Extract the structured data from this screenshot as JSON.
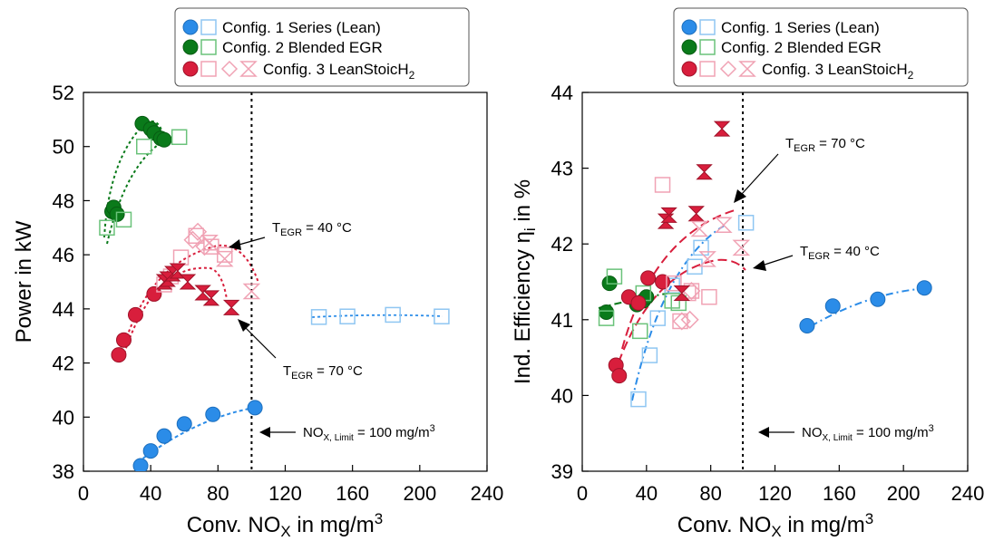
{
  "colors": {
    "series1": "#2b8ce8",
    "series1_light": "#8fc6f2",
    "series2": "#0a7a1a",
    "series2_light": "#6ac27a",
    "series3": "#d81e3c",
    "series3_light": "#f0a2b4"
  },
  "legend": {
    "entries": [
      {
        "prefix": "Config. 1 Series (Lean)",
        "sub": ""
      },
      {
        "prefix": "Config. 2 Blended EGR",
        "sub": ""
      },
      {
        "prefix": "Config. 3 LeanStoicH",
        "sub": "2"
      }
    ]
  },
  "chart_data": [
    {
      "type": "scatter",
      "xlabel": {
        "base": "Conv. NO",
        "sub": "X",
        "rest": " in mg/m",
        "sup": "3"
      },
      "ylabel": "Power in kW",
      "xlim": [
        0,
        240
      ],
      "ylim": [
        38,
        52
      ],
      "xticks": [
        "0",
        "40",
        "80",
        "120",
        "160",
        "200",
        "240"
      ],
      "yticks": [
        "38",
        "40",
        "42",
        "44",
        "46",
        "48",
        "50",
        "52"
      ],
      "vline": 100,
      "annotations": [
        {
          "base": "T",
          "sub": "EGR",
          "rest": " = 40 °C"
        },
        {
          "base": "T",
          "sub": "EGR",
          "rest": " = 70 °C"
        },
        {
          "base": "NO",
          "sub": "X, Limit",
          "rest": " = 100 mg/m",
          "sup": "3"
        }
      ],
      "series": [
        {
          "name": "Config. 1 Series (Lean)",
          "marker": "circle",
          "color": "series1",
          "points": [
            [
              34,
              38.2
            ],
            [
              40,
              38.75
            ],
            [
              48,
              39.3
            ],
            [
              60,
              39.75
            ],
            [
              77,
              40.1
            ],
            [
              102,
              40.35
            ]
          ]
        },
        {
          "name": "Config. 1 Series (Lean)",
          "marker": "square",
          "color": "series1_light",
          "points": [
            [
              140,
              43.7
            ],
            [
              157,
              43.72
            ],
            [
              184,
              43.78
            ],
            [
              213,
              43.72
            ]
          ]
        },
        {
          "name": "Config. 2 Blended EGR",
          "marker": "circle",
          "color": "series2",
          "points": [
            [
              17,
              47.6
            ],
            [
              18,
              47.75
            ],
            [
              20,
              47.5
            ],
            [
              35,
              50.85
            ],
            [
              40,
              50.65
            ],
            [
              42,
              50.5
            ],
            [
              46,
              50.3
            ],
            [
              48,
              50.25
            ]
          ]
        },
        {
          "name": "Config. 2 Blended EGR",
          "marker": "square",
          "color": "series2_light",
          "points": [
            [
              14,
              47.0
            ],
            [
              24,
              47.3
            ],
            [
              36,
              50.0
            ],
            [
              57,
              50.35
            ]
          ]
        },
        {
          "name": "Config. 3 LeanStoicH2",
          "marker": "circle",
          "color": "series3",
          "points": [
            [
              21,
              42.3
            ],
            [
              24,
              42.85
            ],
            [
              31,
              43.78
            ],
            [
              42,
              44.55
            ]
          ]
        },
        {
          "name": "Config. 3 LeanStoicH2",
          "marker": "square",
          "color": "series3_light",
          "points": [
            [
              48,
              44.9
            ],
            [
              52,
              45.2
            ],
            [
              58,
              45.9
            ],
            [
              67,
              46.7
            ],
            [
              76,
              46.3
            ],
            [
              84,
              46.0
            ]
          ]
        },
        {
          "name": "Config. 3 LeanStoicH2",
          "marker": "diamond",
          "color": "series3_light",
          "points": [
            [
              65,
              46.55
            ],
            [
              68,
              46.85
            ],
            [
              72,
              46.3
            ]
          ]
        },
        {
          "name": "Config. 3 LeanStoicH2",
          "marker": "hourglass",
          "color": "series3",
          "points": [
            [
              48,
              45.0
            ],
            [
              50,
              45.1
            ],
            [
              53,
              45.3
            ],
            [
              56,
              45.4
            ],
            [
              62,
              45.0
            ],
            [
              71,
              44.6
            ],
            [
              76,
              44.4
            ],
            [
              88,
              44.05
            ]
          ]
        },
        {
          "name": "Config. 3 LeanStoicH2",
          "marker": "hourglass_open",
          "color": "series3_light",
          "points": [
            [
              75,
              46.45
            ],
            [
              84,
              45.85
            ],
            [
              100,
              44.65
            ]
          ]
        }
      ]
    },
    {
      "type": "scatter",
      "xlabel": {
        "base": "Conv. NO",
        "sub": "X",
        "rest": " in mg/m",
        "sup": "3"
      },
      "ylabel": {
        "base": "Ind. Efficiency η",
        "sub": "i",
        "rest": " in %"
      },
      "xlim": [
        0,
        240
      ],
      "ylim": [
        39,
        44
      ],
      "xticks": [
        "0",
        "40",
        "80",
        "120",
        "160",
        "200",
        "240"
      ],
      "yticks": [
        "39",
        "40",
        "41",
        "42",
        "43",
        "44"
      ],
      "vline": 100,
      "annotations": [
        {
          "base": "T",
          "sub": "EGR",
          "rest": " = 70 °C"
        },
        {
          "base": "T",
          "sub": "EGR",
          "rest": " = 40 °C"
        },
        {
          "base": "NO",
          "sub": "X, Limit",
          "rest": " = 100 mg/m",
          "sup": "3"
        }
      ],
      "series": [
        {
          "name": "Config. 1 Series (Lean)",
          "marker": "circle",
          "color": "series1",
          "points": [
            [
              140,
              40.92
            ],
            [
              156,
              41.18
            ],
            [
              184,
              41.27
            ],
            [
              213,
              41.42
            ]
          ]
        },
        {
          "name": "Config. 1 Series (Lean)",
          "marker": "square",
          "color": "series1_light",
          "points": [
            [
              35,
              39.95
            ],
            [
              42,
              40.53
            ],
            [
              47,
              41.02
            ],
            [
              56,
              41.45
            ],
            [
              70,
              41.7
            ],
            [
              74,
              41.95
            ],
            [
              102,
              42.28
            ]
          ]
        },
        {
          "name": "Config. 2 Blended EGR",
          "marker": "circle",
          "color": "series2",
          "points": [
            [
              15,
              41.1
            ],
            [
              17,
              41.48
            ],
            [
              34,
              41.2
            ],
            [
              38,
              41.25
            ],
            [
              40,
              41.3
            ]
          ]
        },
        {
          "name": "Config. 2 Blended EGR",
          "marker": "square",
          "color": "series2_light",
          "points": [
            [
              15,
              41.02
            ],
            [
              20,
              41.57
            ],
            [
              36,
              40.85
            ],
            [
              38,
              41.35
            ],
            [
              56,
              41.25
            ],
            [
              60,
              41.22
            ]
          ]
        },
        {
          "name": "Config. 3 LeanStoicH2",
          "marker": "circle",
          "color": "series3",
          "points": [
            [
              21,
              40.4
            ],
            [
              23,
              40.26
            ],
            [
              29,
              41.3
            ],
            [
              35,
              41.22
            ],
            [
              41,
              41.55
            ],
            [
              50,
              41.5
            ]
          ]
        },
        {
          "name": "Config. 3 LeanStoicH2",
          "marker": "square",
          "color": "series3_light",
          "points": [
            [
              50,
              42.78
            ],
            [
              57,
              41.48
            ],
            [
              61,
              40.98
            ],
            [
              66,
              41.35
            ],
            [
              68,
              41.38
            ],
            [
              79,
              41.3
            ]
          ]
        },
        {
          "name": "Config. 3 LeanStoicH2",
          "marker": "diamond",
          "color": "series3_light",
          "points": [
            [
              62,
              40.98
            ],
            [
              67,
              41.0
            ],
            [
              68,
              41.38
            ]
          ]
        },
        {
          "name": "Config. 3 LeanStoicH2",
          "marker": "hourglass",
          "color": "series3",
          "points": [
            [
              52,
              42.3
            ],
            [
              54,
              42.38
            ],
            [
              62,
              41.35
            ],
            [
              71,
              42.4
            ],
            [
              76,
              42.95
            ],
            [
              87,
              43.52
            ]
          ]
        },
        {
          "name": "Config. 3 LeanStoicH2",
          "marker": "hourglass_open",
          "color": "series3_light",
          "points": [
            [
              73,
              42.2
            ],
            [
              78,
              41.8
            ],
            [
              88,
              42.25
            ],
            [
              99,
              41.95
            ]
          ]
        }
      ]
    }
  ]
}
